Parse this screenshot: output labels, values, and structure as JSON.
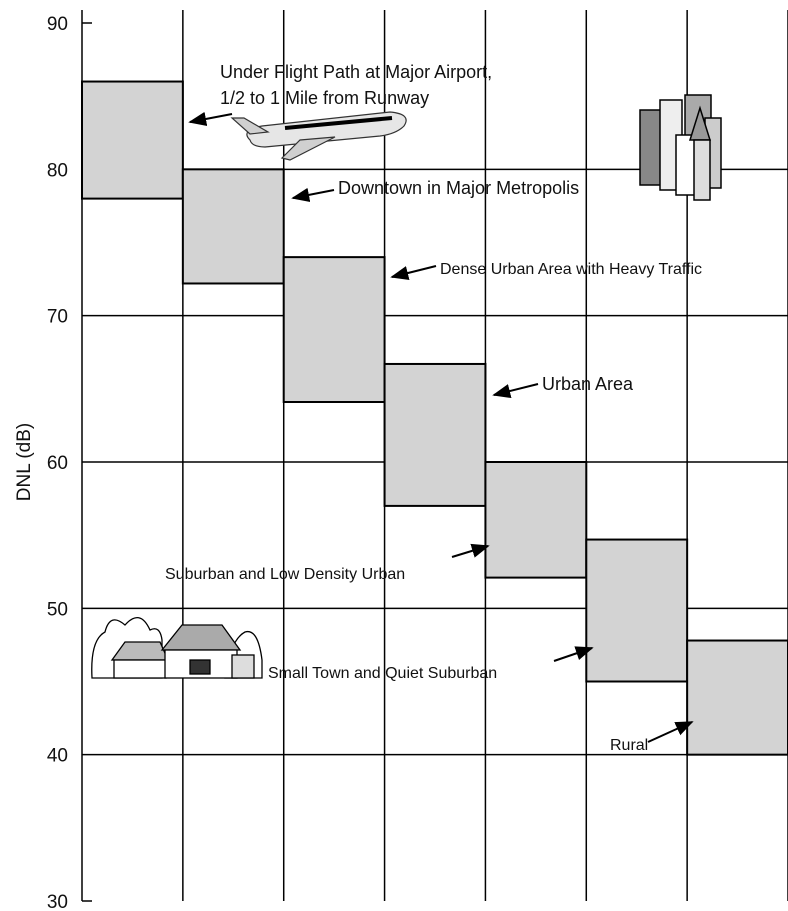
{
  "chart_data": {
    "type": "floating-bar",
    "y_label": "DNL (dB)",
    "low": [
      78,
      72.2,
      64.1,
      57,
      52.1,
      45,
      40
    ],
    "high": [
      86,
      80,
      74,
      66.7,
      60,
      54.7,
      47.8
    ],
    "color": "#d3d3d3",
    "ylim": [
      30,
      90
    ],
    "yticks": [
      30,
      40,
      50,
      60,
      70,
      80,
      90
    ],
    "grid": true,
    "annotations": [
      "Under Flight Path at Major Airport,",
      "1/2 to 1 Mile from Runway",
      "Downtown in Major Metropolis",
      "Dense Urban Area with Heavy Traffic",
      "Urban Area",
      "Suburban and Low Density Urban",
      "Small Town and Quiet Suburban",
      "Rural"
    ]
  }
}
